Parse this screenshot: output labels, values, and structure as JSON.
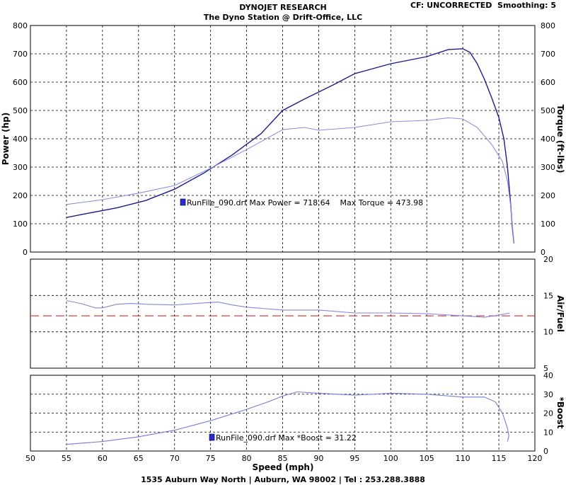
{
  "header": {
    "title": "DYNOJET RESEARCH",
    "subtitle": "The Dyno Station @ Drift-Office, LLC",
    "settings": "CF: UNCORRECTED  Smoothing: 5"
  },
  "footer": {
    "address": "1535 Auburn Way North | Auburn, WA 98002 | Tel : 253.288.3888"
  },
  "colors": {
    "power": "#1c1c8c",
    "torque": "#8e8ee0",
    "afr": "#8585dc",
    "boost": "#7a7ad8",
    "afr_ref": "#c83232",
    "grid": "#000000",
    "legend_marker": "#2a2ad8"
  },
  "chart_data": [
    {
      "type": "line",
      "xlabel": "Speed (mph)",
      "xlim": [
        50,
        120
      ],
      "x_ticks": [
        "50",
        "55",
        "60",
        "65",
        "70",
        "75",
        "80",
        "85",
        "90",
        "95",
        "100",
        "105",
        "110",
        "115",
        "120"
      ],
      "ylabel": "Power (hp)",
      "ylim": [
        0,
        800
      ],
      "y_ticks": [
        "0",
        "100",
        "200",
        "300",
        "400",
        "500",
        "600",
        "700",
        "800"
      ],
      "y2label": "Torque (ft-lbs)",
      "y2lim": [
        0,
        800
      ],
      "y2_ticks": [
        "0",
        "100",
        "200",
        "300",
        "400",
        "500",
        "600",
        "700",
        "800"
      ],
      "grid": true,
      "annotation": "RunFile_090.drf Max Power = 718.64    Max Torque = 473.98",
      "series": [
        {
          "key": "power",
          "color": "#1c1c8c",
          "x": [
            55,
            58,
            62,
            66,
            70,
            74,
            78,
            82,
            85,
            88,
            92,
            95,
            100,
            105,
            108,
            110,
            111,
            112,
            113,
            114,
            115,
            115.7,
            116.2,
            116.6,
            116.9,
            117.1
          ],
          "y": [
            122,
            137,
            156,
            182,
            222,
            278,
            343,
            418,
            500,
            540,
            590,
            630,
            665,
            690,
            715,
            718,
            705,
            665,
            610,
            545,
            475,
            400,
            300,
            180,
            80,
            30
          ]
        },
        {
          "key": "torque",
          "color": "#8e8ee0",
          "x": [
            55,
            60,
            65,
            70,
            75,
            80,
            85,
            88,
            90,
            95,
            100,
            105,
            108,
            110,
            112,
            114,
            115.5,
            116.2,
            116.6,
            116.9,
            117.1
          ],
          "y": [
            168,
            185,
            208,
            235,
            296,
            362,
            432,
            440,
            430,
            440,
            460,
            465,
            474,
            470,
            440,
            380,
            320,
            250,
            170,
            90,
            30
          ]
        }
      ]
    },
    {
      "type": "line",
      "xlim": [
        50,
        120
      ],
      "ylabel": "Air/Fuel",
      "ylim": [
        5,
        20
      ],
      "y_ticks": [
        "5",
        "10",
        "15",
        "20"
      ],
      "grid": true,
      "reference_line": {
        "y": 12.2,
        "style": "dashed",
        "color": "#c83232"
      },
      "series": [
        {
          "key": "afr",
          "color": "#8585dc",
          "x": [
            55,
            57,
            59,
            60,
            62,
            64,
            66,
            70,
            73,
            76,
            78,
            80,
            85,
            90,
            95,
            100,
            105,
            110,
            113,
            115,
            116.5
          ],
          "y": [
            14.3,
            13.9,
            13.3,
            13.3,
            13.8,
            13.9,
            13.8,
            13.7,
            13.9,
            14.1,
            13.7,
            13.4,
            13.0,
            13.0,
            12.6,
            12.6,
            12.5,
            12.2,
            12.0,
            12.3,
            12.6
          ]
        }
      ]
    },
    {
      "type": "line",
      "xlim": [
        50,
        120
      ],
      "ylabel": "*Boost",
      "ylim": [
        0,
        40
      ],
      "y_ticks": [
        "0",
        "10",
        "20",
        "30",
        "40"
      ],
      "grid": true,
      "annotation": "RunFile_090.drf Max *Boost = 31.22",
      "series": [
        {
          "key": "boost",
          "color": "#7a7ad8",
          "x": [
            55,
            60,
            65,
            70,
            75,
            80,
            83,
            85,
            87,
            90,
            95,
            100,
            105,
            110,
            113,
            114.5,
            115.5,
            116.2,
            116.4,
            116.2
          ],
          "y": [
            3.5,
            5,
            7.5,
            11,
            16,
            22,
            26,
            29,
            31.2,
            30.5,
            29.5,
            30.5,
            30,
            28.5,
            28.5,
            26,
            20,
            12,
            8,
            5
          ]
        }
      ]
    }
  ]
}
